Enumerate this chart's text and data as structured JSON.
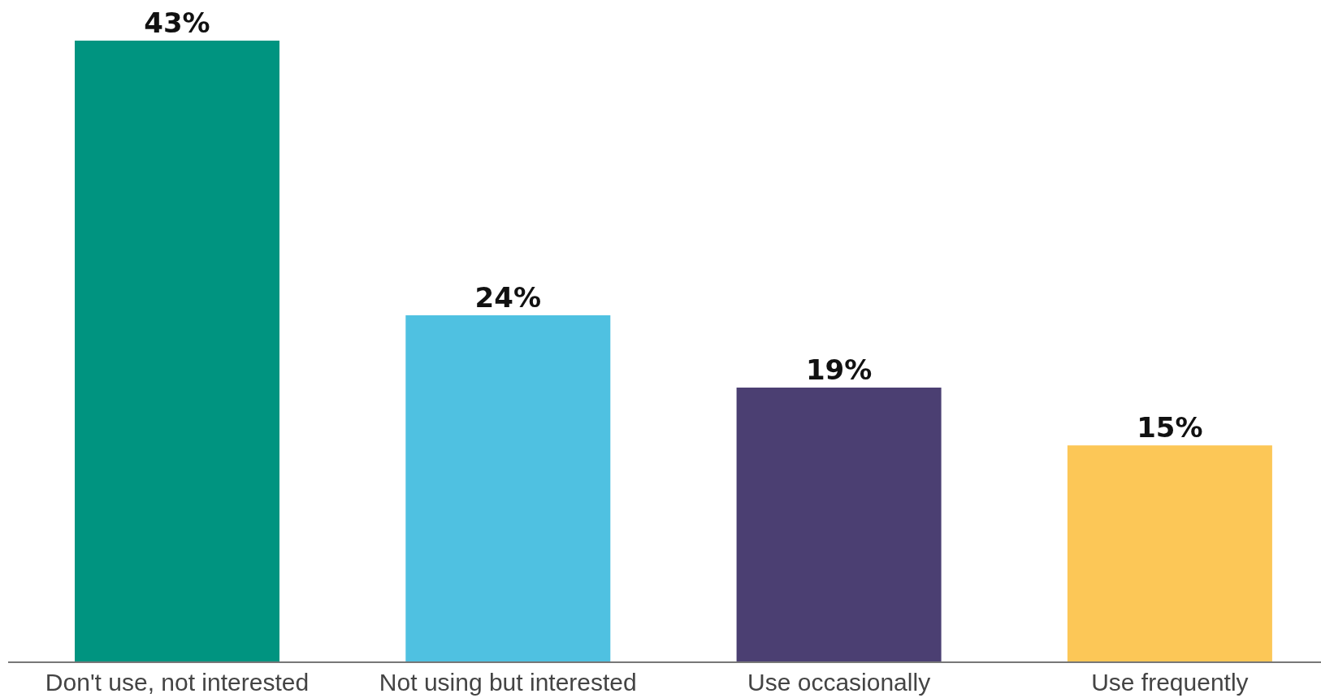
{
  "chart_data": {
    "type": "bar",
    "categories": [
      "Don't use, not interested",
      "Not using but interested",
      "Use occasionally",
      "Use frequently"
    ],
    "values": [
      43,
      24,
      19,
      15
    ],
    "colors": [
      "#009480",
      "#4fc1e1",
      "#4b3f72",
      "#fcc757"
    ],
    "value_labels": [
      "43%",
      "24%",
      "19%",
      "15%"
    ]
  }
}
